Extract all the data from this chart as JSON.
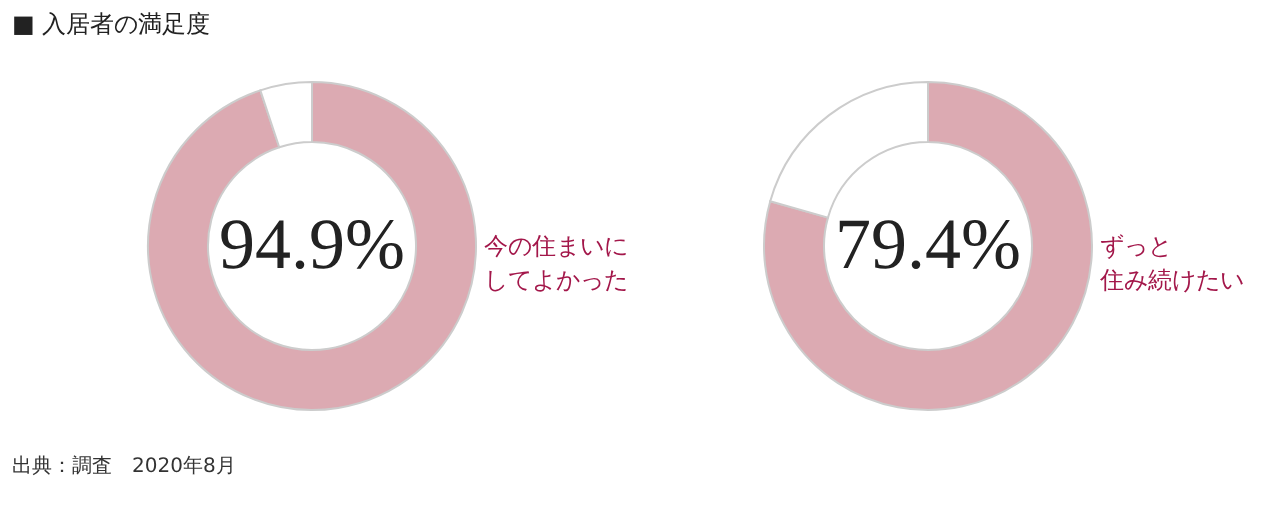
{
  "chart_data": [
    {
      "type": "donut",
      "title": "■ 入居者の満足度",
      "categories": [
        "今の住まいにしてよかった",
        null
      ],
      "values": [
        94.9,
        5.1
      ],
      "colors": [
        "#dcaab2",
        "#ffffff"
      ],
      "value_labels": [
        "94.9%",
        null
      ],
      "annotations": [
        "出典：調査　2020年8月"
      ]
    },
    {
      "type": "donut",
      "categories": [
        "ずっと住み続けたい",
        null
      ],
      "values": [
        79.4,
        20.6
      ],
      "colors": [
        "#dcaab2",
        "#ffffff"
      ],
      "value_labels": [
        "79.4%",
        null
      ]
    }
  ]
}
